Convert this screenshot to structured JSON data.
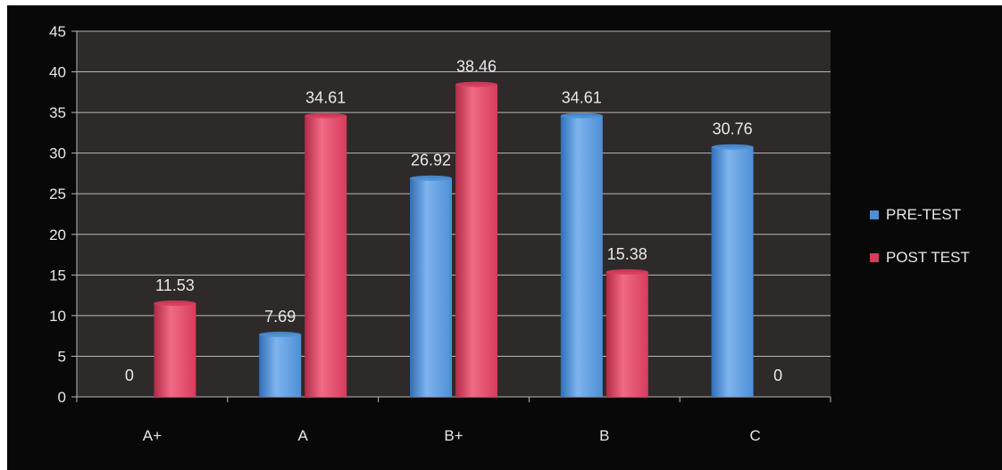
{
  "colors": {
    "pre_test": "#4d8fd6",
    "post_test": "#d83c5b",
    "plot_bg": "#2e2a2a",
    "grid": "#b8b8b8",
    "text": "#e8e8e8"
  },
  "chart_data": {
    "type": "bar",
    "categories": [
      "A+",
      "A",
      "B+",
      "B",
      "C"
    ],
    "series": [
      {
        "name": "PRE-TEST",
        "values": [
          0,
          7.69,
          26.92,
          34.61,
          30.76
        ]
      },
      {
        "name": "POST TEST",
        "values": [
          11.53,
          34.61,
          38.46,
          15.38,
          0
        ]
      }
    ],
    "data_labels": [
      [
        "0",
        "7.69",
        "26.92",
        "34.61",
        "30.76"
      ],
      [
        "11.53",
        "34.61",
        "38.46",
        "15.38",
        "0"
      ]
    ],
    "y_ticks": [
      "0",
      "5",
      "10",
      "15",
      "20",
      "25",
      "30",
      "35",
      "40",
      "45"
    ],
    "ylim": [
      0,
      45
    ],
    "grid": true,
    "legend_position": "right",
    "title": "",
    "xlabel": "",
    "ylabel": ""
  }
}
